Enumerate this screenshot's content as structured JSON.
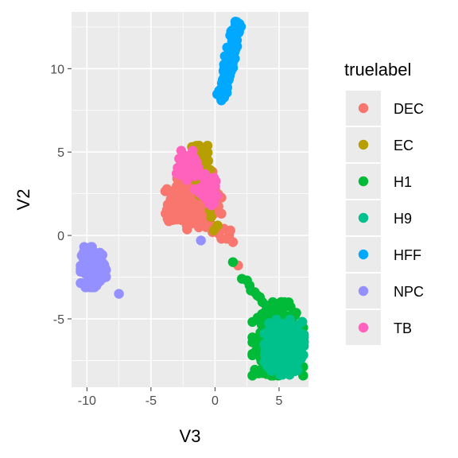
{
  "chart_data": {
    "type": "scatter",
    "title": "",
    "xlabel": "V3",
    "ylabel": "V2",
    "xlim": [
      -11.2,
      7.3
    ],
    "ylim": [
      -9.1,
      13.4
    ],
    "x_ticks": [
      -10,
      -5,
      0,
      5
    ],
    "x_tick_labels": [
      "-10",
      "-5",
      "0",
      "5"
    ],
    "y_ticks": [
      -5,
      0,
      5,
      10
    ],
    "y_tick_labels": [
      "-5",
      "0",
      "5",
      "10"
    ],
    "grid": true,
    "legend_title": "truelabel",
    "legend_position": "right",
    "series": [
      {
        "name": "DEC",
        "color": "#F8766D",
        "clusters": [
          {
            "cx": -1.9,
            "cy": 1.9,
            "sx": 0.9,
            "sy": 0.7,
            "n": 170
          },
          {
            "cx": -0.6,
            "cy": 2.5,
            "sx": 0.5,
            "sy": 0.6,
            "n": 40
          }
        ],
        "points": [
          [
            -3.7,
            1.0
          ],
          [
            -0.7,
            0.5
          ],
          [
            -0.2,
            0.2
          ],
          [
            0.3,
            0.1
          ],
          [
            0.5,
            -0.2
          ],
          [
            0.9,
            -0.2
          ],
          [
            1.1,
            0.0
          ],
          [
            1.4,
            -0.4
          ],
          [
            1.8,
            -1.8
          ],
          [
            0.1,
            0.5
          ],
          [
            0.7,
            0.4
          ],
          [
            -0.4,
            0.8
          ],
          [
            1.2,
            0.3
          ]
        ]
      },
      {
        "name": "EC",
        "color": "#B79F00",
        "clusters": [
          {
            "cx": -1.3,
            "cy": 4.6,
            "sx": 0.35,
            "sy": 0.45,
            "n": 45
          },
          {
            "cx": -0.9,
            "cy": 3.5,
            "sx": 0.3,
            "sy": 0.5,
            "n": 20
          }
        ],
        "points": [
          [
            -1.8,
            5.3
          ],
          [
            -1.5,
            5.2
          ],
          [
            -0.8,
            4.2
          ],
          [
            -0.6,
            3.9
          ],
          [
            -0.9,
            2.8
          ],
          [
            -0.4,
            1.5
          ],
          [
            -0.1,
            0.3
          ],
          [
            -0.3,
            1.1
          ],
          [
            0.2,
            0.6
          ]
        ]
      },
      {
        "name": "H1",
        "color": "#00BA38",
        "clusters": [
          {
            "cx": 4.9,
            "cy": -6.2,
            "sx": 0.9,
            "sy": 1.0,
            "n": 260
          }
        ],
        "points": [
          [
            1.4,
            -1.6
          ],
          [
            2.1,
            -2.6
          ],
          [
            2.5,
            -2.7
          ],
          [
            2.7,
            -3.0
          ],
          [
            2.8,
            -3.3
          ],
          [
            3.1,
            -3.4
          ],
          [
            3.3,
            -3.6
          ],
          [
            3.5,
            -3.7
          ],
          [
            3.7,
            -4.0
          ],
          [
            4.0,
            -4.2
          ],
          [
            4.3,
            -4.5
          ],
          [
            3.9,
            -4.6
          ],
          [
            4.6,
            -4.3
          ]
        ]
      },
      {
        "name": "H9",
        "color": "#00C08B",
        "clusters": [
          {
            "cx": 5.4,
            "cy": -6.7,
            "sx": 0.7,
            "sy": 0.75,
            "n": 300
          }
        ],
        "points": []
      },
      {
        "name": "HFF",
        "color": "#00A9FF",
        "clusters": [],
        "line_segments": [
          {
            "from": [
              0.5,
              8.2
            ],
            "to": [
              1.8,
              12.7
            ],
            "n": 140,
            "spread": 0.18
          }
        ],
        "points": [
          [
            0.5,
            8.1
          ],
          [
            0.7,
            8.3
          ],
          [
            1.7,
            12.8
          ],
          [
            1.6,
            12.6
          ]
        ]
      },
      {
        "name": "NPC",
        "color": "#9590FF",
        "clusters": [
          {
            "cx": -9.5,
            "cy": -1.9,
            "sx": 0.45,
            "sy": 0.55,
            "n": 160
          }
        ],
        "points": [
          [
            -7.5,
            -3.5
          ],
          [
            -1.1,
            -0.3
          ]
        ]
      },
      {
        "name": "TB",
        "color": "#FF62BC",
        "clusters": [
          {
            "cx": -2.2,
            "cy": 4.2,
            "sx": 0.4,
            "sy": 0.4,
            "n": 70
          },
          {
            "cx": -0.6,
            "cy": 2.8,
            "sx": 0.45,
            "sy": 0.4,
            "n": 35
          }
        ],
        "points": [
          [
            -2.8,
            4.6
          ],
          [
            -1.4,
            3.6
          ],
          [
            0.0,
            2.3
          ],
          [
            -0.3,
            1.8
          ]
        ]
      }
    ]
  }
}
